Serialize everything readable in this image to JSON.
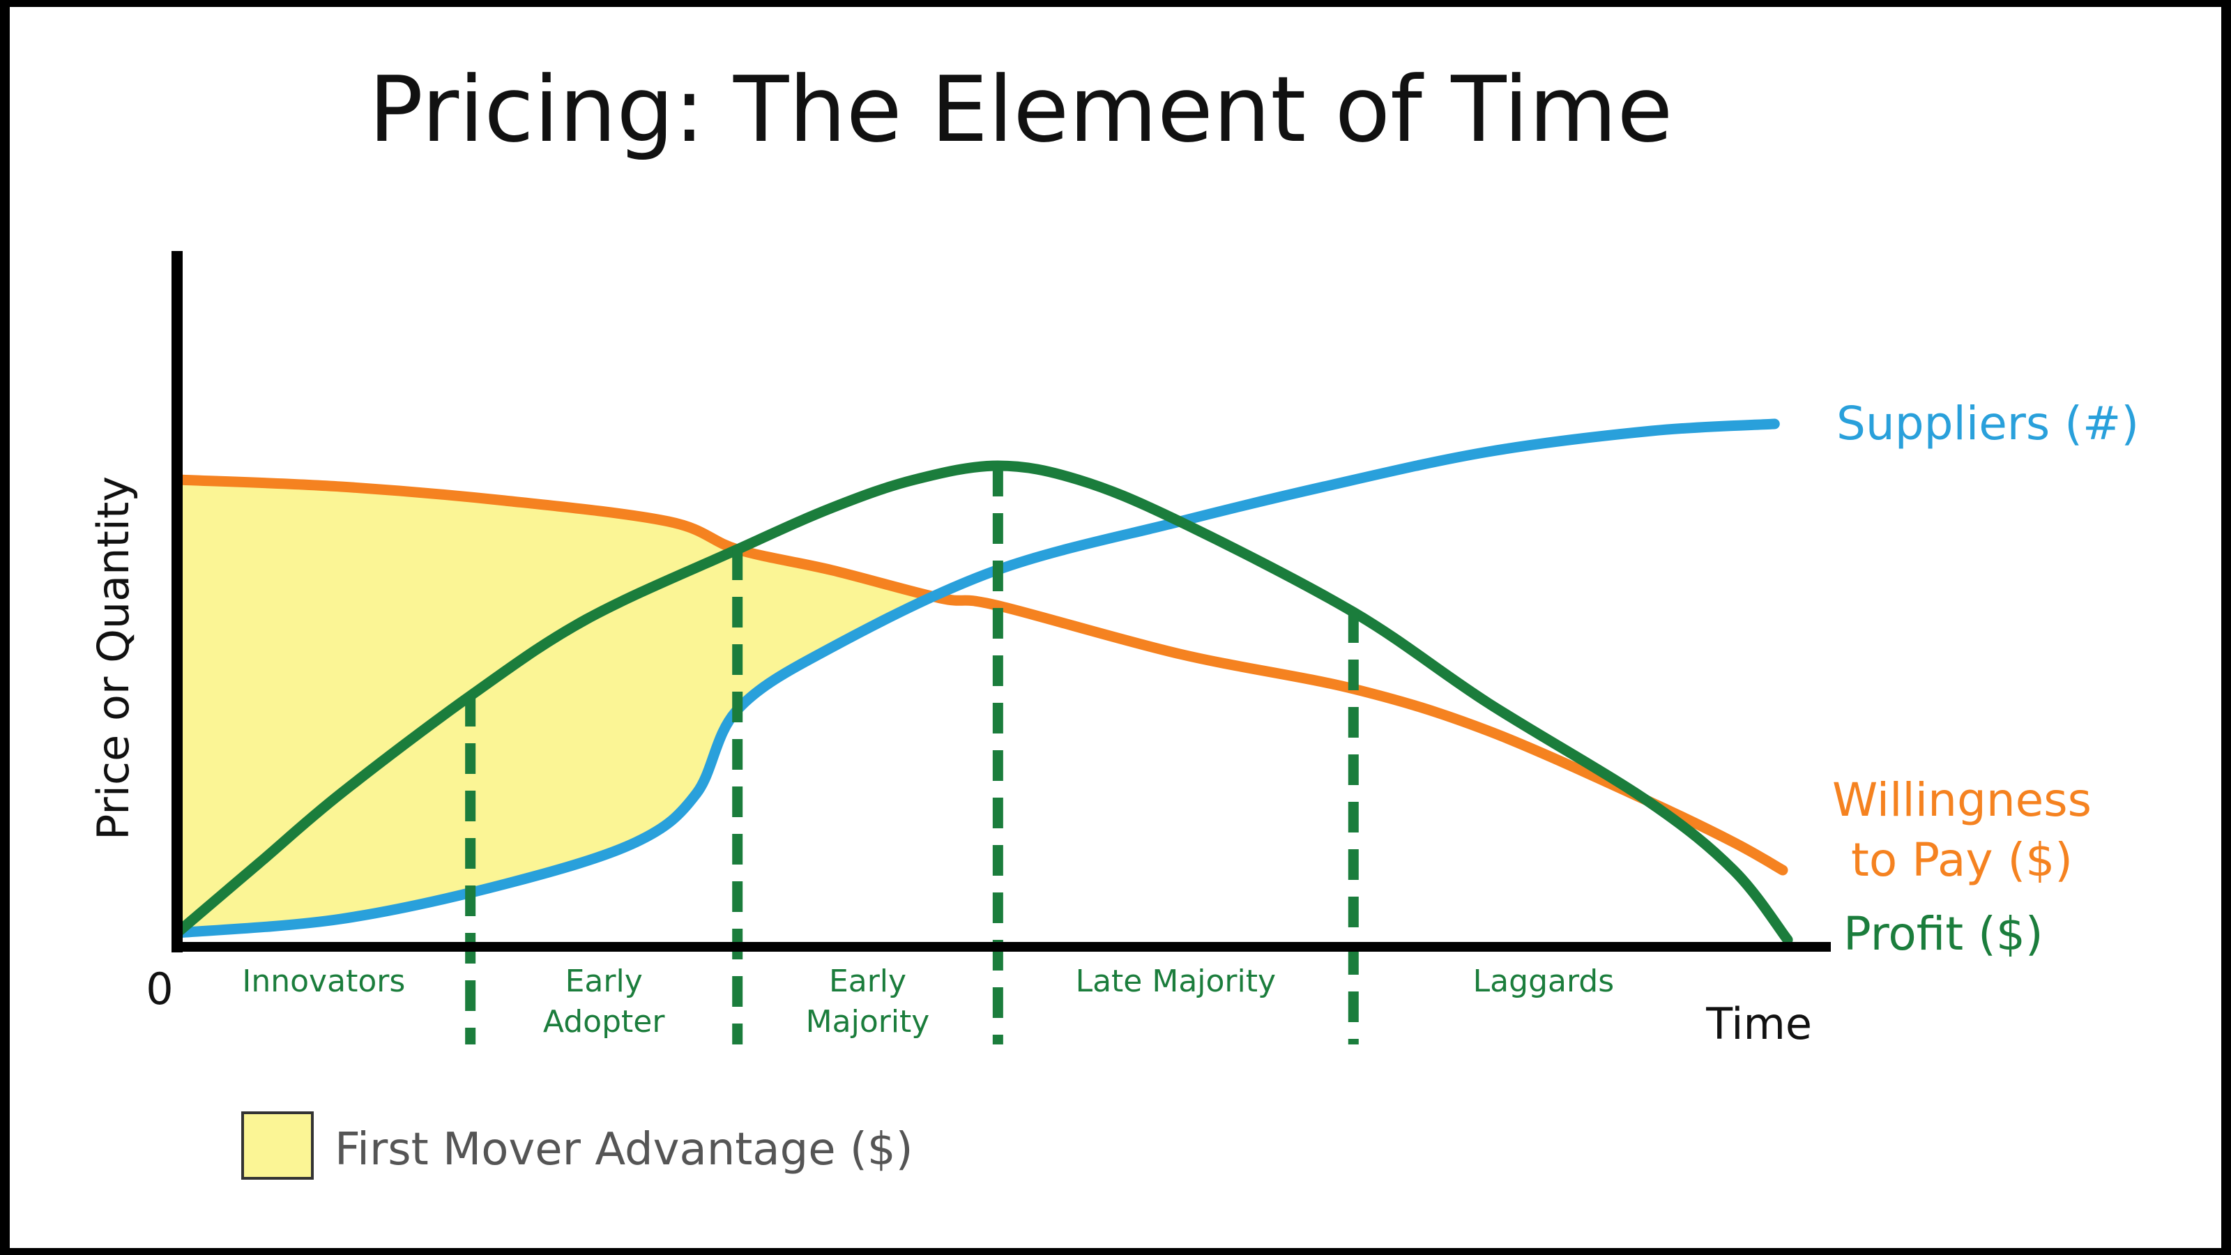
{
  "title": "Pricing: The Element of Time",
  "colors": {
    "suppliers": "#29a0db",
    "willingness": "#f58220",
    "profit": "#1b7d3c",
    "first_mover_fill": "#fbf595",
    "axis": "#000000"
  },
  "legend": {
    "first_mover_label": "First Mover Advantage ($)"
  },
  "chart_data": {
    "type": "line",
    "title": "Pricing: The Element of Time",
    "xlabel": "Time",
    "ylabel": "Price or Quantity",
    "origin_label": "0",
    "xlim": [
      0,
      100
    ],
    "ylim": [
      0,
      100
    ],
    "stages": [
      {
        "label_lines": [
          "Innovators"
        ]
      },
      {
        "label_lines": [
          "Early",
          "Adopter"
        ]
      },
      {
        "label_lines": [
          "Early",
          "Majority"
        ]
      },
      {
        "label_lines": [
          "Late Majority"
        ]
      },
      {
        "label_lines": [
          "Laggards"
        ]
      }
    ],
    "stage_boundaries": [
      17.9,
      34.2,
      50.1,
      71.8
    ],
    "series": [
      {
        "name": "Suppliers (#)",
        "label_lines": [
          "Suppliers (#)"
        ],
        "color": "#29a0db",
        "points": [
          [
            0,
            2
          ],
          [
            10,
            4
          ],
          [
            20,
            9
          ],
          [
            28,
            15
          ],
          [
            31.7,
            22
          ],
          [
            34.2,
            34
          ],
          [
            40,
            43
          ],
          [
            50,
            54
          ],
          [
            61.2,
            61
          ],
          [
            70,
            66
          ],
          [
            80,
            71
          ],
          [
            90,
            74
          ],
          [
            97.5,
            75
          ]
        ]
      },
      {
        "name": "Willingness to Pay ($)",
        "label_lines": [
          "Willingness",
          "to Pay ($)"
        ],
        "color": "#f58220",
        "points": [
          [
            0,
            67
          ],
          [
            10,
            66
          ],
          [
            20,
            64
          ],
          [
            30,
            61
          ],
          [
            34.2,
            57
          ],
          [
            40,
            54
          ],
          [
            46.6,
            50
          ],
          [
            50,
            49
          ],
          [
            61.2,
            42
          ],
          [
            71.8,
            37
          ],
          [
            80,
            31
          ],
          [
            89.7,
            21
          ],
          [
            95,
            15
          ],
          [
            98,
            11
          ]
        ]
      },
      {
        "name": "Profit ($)",
        "label_lines": [
          "Profit ($)"
        ],
        "color": "#1b7d3c",
        "points": [
          [
            0,
            2
          ],
          [
            5,
            12
          ],
          [
            10,
            22
          ],
          [
            17.9,
            36
          ],
          [
            25,
            47
          ],
          [
            34.2,
            57
          ],
          [
            40,
            63
          ],
          [
            45,
            67
          ],
          [
            50.1,
            69
          ],
          [
            55,
            67
          ],
          [
            61.2,
            61
          ],
          [
            71.8,
            48
          ],
          [
            80,
            35
          ],
          [
            89.7,
            21
          ],
          [
            95,
            11
          ],
          [
            98.3,
            1
          ]
        ]
      }
    ],
    "shaded_region": {
      "name": "First Mover Advantage ($)",
      "description_bounds": "between Willingness to Pay (top) and Suppliers (bottom), from x=0 to their crossing"
    },
    "grid": false
  }
}
